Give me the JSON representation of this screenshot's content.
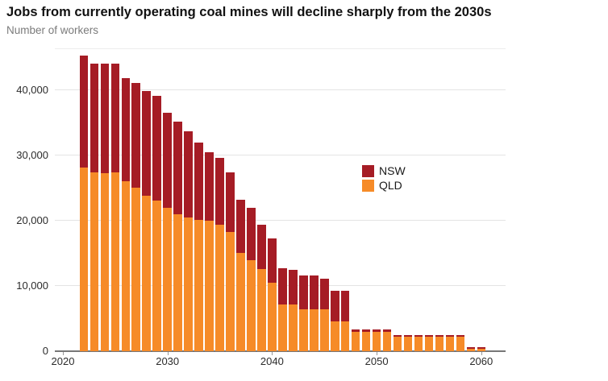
{
  "header": {
    "title": "Jobs from currently operating coal mines will decline sharply from the 2030s",
    "subtitle": "Number of workers"
  },
  "legend": {
    "items": [
      {
        "label": "NSW",
        "color": "#a51c25"
      },
      {
        "label": "QLD",
        "color": "#f68b28"
      }
    ]
  },
  "chart_data": {
    "type": "bar",
    "stacked": true,
    "title": "Jobs from currently operating coal mines will decline sharply from the 2030s",
    "ylabel": "Number of workers",
    "xlabel": "",
    "grid": "horizontal",
    "legend_position": "inside-right",
    "ylim": [
      0,
      46350
    ],
    "x": [
      2022,
      2023,
      2024,
      2025,
      2026,
      2027,
      2028,
      2029,
      2030,
      2031,
      2032,
      2033,
      2034,
      2035,
      2036,
      2037,
      2038,
      2039,
      2040,
      2041,
      2042,
      2043,
      2044,
      2045,
      2046,
      2047,
      2048,
      2049,
      2050,
      2051,
      2052,
      2053,
      2054,
      2055,
      2056,
      2057,
      2058,
      2059,
      2060
    ],
    "series": [
      {
        "name": "QLD",
        "color": "#f68b28",
        "values": [
          28100,
          27400,
          27300,
          27400,
          26000,
          25000,
          23800,
          23000,
          22000,
          21000,
          20500,
          20100,
          20000,
          19400,
          18300,
          15000,
          13900,
          12600,
          10500,
          7100,
          7100,
          6400,
          6400,
          6400,
          4600,
          4600,
          3000,
          3000,
          3000,
          3000,
          2250,
          2250,
          2250,
          2250,
          2250,
          2250,
          2250,
          400,
          400
        ]
      },
      {
        "name": "NSW",
        "color": "#a51c25",
        "values": [
          17200,
          16600,
          16700,
          16600,
          15800,
          16000,
          16000,
          16100,
          14500,
          14100,
          13200,
          11800,
          10500,
          10200,
          9100,
          8200,
          8100,
          6700,
          6800,
          5600,
          5300,
          5200,
          5200,
          4700,
          4700,
          4700,
          300,
          300,
          300,
          300,
          250,
          250,
          250,
          250,
          250,
          250,
          250,
          200,
          200
        ]
      }
    ],
    "y_ticks": [
      {
        "value": 0,
        "label": "0"
      },
      {
        "value": 10000,
        "label": "10,000"
      },
      {
        "value": 20000,
        "label": "20,000"
      },
      {
        "value": 30000,
        "label": "30,000"
      },
      {
        "value": 40000,
        "label": "40,000"
      }
    ],
    "x_ticks": [
      {
        "value": 2020,
        "label": "2020"
      },
      {
        "value": 2030,
        "label": "2030"
      },
      {
        "value": 2040,
        "label": "2040"
      },
      {
        "value": 2050,
        "label": "2050"
      },
      {
        "value": 2060,
        "label": "2060"
      }
    ]
  }
}
